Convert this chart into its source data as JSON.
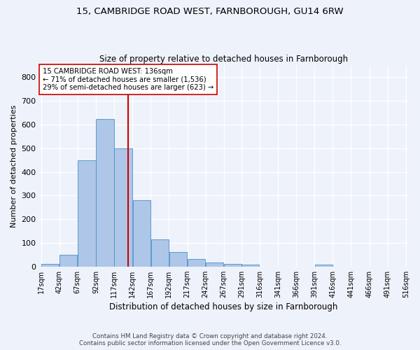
{
  "title_line1": "15, CAMBRIDGE ROAD WEST, FARNBOROUGH, GU14 6RW",
  "title_line2": "Size of property relative to detached houses in Farnborough",
  "xlabel": "Distribution of detached houses by size in Farnborough",
  "ylabel": "Number of detached properties",
  "bar_color": "#aec6e8",
  "bar_edge_color": "#4a90c8",
  "vline_x": 136,
  "vline_color": "#cc0000",
  "annotation_text": "15 CAMBRIDGE ROAD WEST: 136sqm\n← 71% of detached houses are smaller (1,536)\n29% of semi-detached houses are larger (623) →",
  "bin_edges": [
    17,
    42,
    67,
    92,
    117,
    142,
    167,
    192,
    217,
    242,
    267,
    291,
    316,
    341,
    366,
    391,
    416,
    441,
    466,
    491,
    516
  ],
  "bar_heights": [
    10,
    50,
    450,
    625,
    500,
    280,
    115,
    62,
    32,
    17,
    10,
    7,
    0,
    0,
    0,
    7,
    0,
    0,
    0,
    0
  ],
  "tick_labels": [
    "17sqm",
    "42sqm",
    "67sqm",
    "92sqm",
    "117sqm",
    "142sqm",
    "167sqm",
    "192sqm",
    "217sqm",
    "242sqm",
    "267sqm",
    "291sqm",
    "316sqm",
    "341sqm",
    "366sqm",
    "391sqm",
    "416sqm",
    "441sqm",
    "466sqm",
    "491sqm",
    "516sqm"
  ],
  "ylim": [
    0,
    850
  ],
  "yticks": [
    0,
    100,
    200,
    300,
    400,
    500,
    600,
    700,
    800
  ],
  "footer_line1": "Contains HM Land Registry data © Crown copyright and database right 2024.",
  "footer_line2": "Contains public sector information licensed under the Open Government Licence v3.0.",
  "background_color": "#eef2fa",
  "plot_bg_color": "#eef2fa",
  "grid_color": "#ffffff",
  "annotation_box_facecolor": "#ffffff",
  "annotation_box_edgecolor": "#cc0000"
}
